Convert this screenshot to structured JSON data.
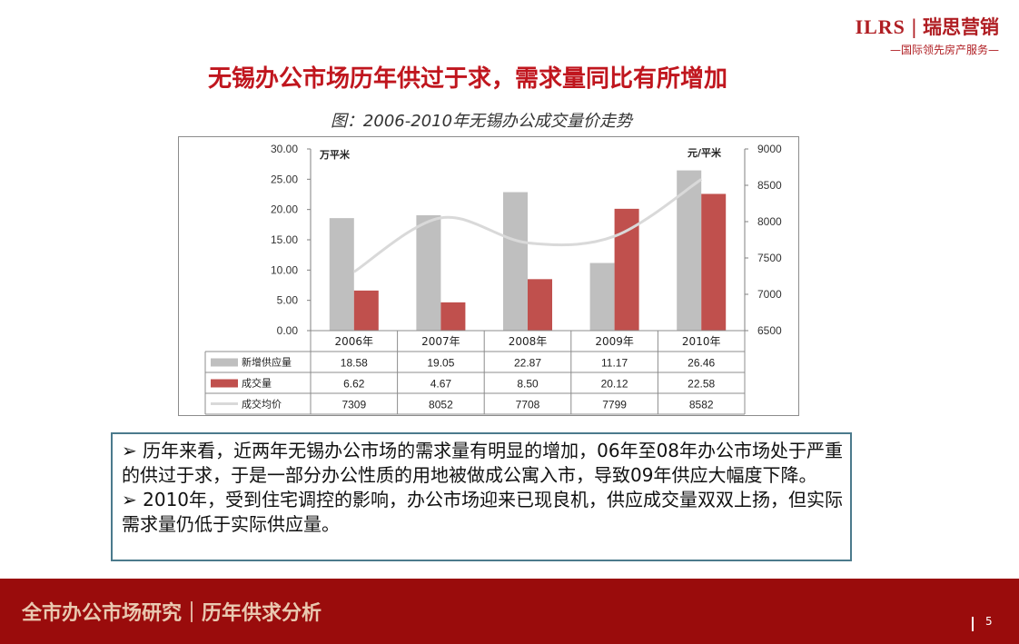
{
  "logo": {
    "en": "ILRS",
    "separator": "|",
    "cn": "瑞思营销",
    "tagline": "—国际领先房产服务—"
  },
  "headline": "无锡办公市场历年供过于求，需求量同比有所增加",
  "caption": "图：2006-2010年无锡办公成交量价走势",
  "chart_data": {
    "type": "bar",
    "categories": [
      "2006年",
      "2007年",
      "2008年",
      "2009年",
      "2010年"
    ],
    "left_axis_unit": "万平米",
    "right_axis_unit": "元/平米",
    "left_ticks": [
      "30.00",
      "25.00",
      "20.00",
      "15.00",
      "10.00",
      "5.00",
      "0.00"
    ],
    "right_ticks": [
      "9000",
      "8500",
      "8000",
      "7500",
      "7000",
      "6500"
    ],
    "ylim_left": [
      0,
      30
    ],
    "ylim_right": [
      6500,
      9000
    ],
    "series": [
      {
        "name": "新增供应量",
        "type": "bar",
        "axis": "left",
        "color": "#bfbfbf",
        "values": [
          18.58,
          19.05,
          22.87,
          11.17,
          26.46
        ],
        "labels": [
          "18.58",
          "19.05",
          "22.87",
          "11.17",
          "26.46"
        ]
      },
      {
        "name": "成交量",
        "type": "bar",
        "axis": "left",
        "color": "#c0504d",
        "values": [
          6.62,
          4.67,
          8.5,
          20.12,
          22.58
        ],
        "labels": [
          "6.62",
          "4.67",
          "8.50",
          "20.12",
          "22.58"
        ]
      },
      {
        "name": "成交均价",
        "type": "line",
        "axis": "right",
        "color": "#d9d9d9",
        "values": [
          7309,
          8052,
          7708,
          7799,
          8582
        ],
        "labels": [
          "7309",
          "8052",
          "7708",
          "7799",
          "8582"
        ]
      }
    ],
    "legend": "table-below",
    "grid": false
  },
  "notes": [
    "➢  历年来看，近两年无锡办公市场的需求量有明显的增加，06年至08年办公市场处于严重的供过于求，于是一部分办公性质的用地被做成公寓入市，导致09年供应大幅度下降。",
    "➢  2010年，受到住宅调控的影响，办公市场迎来已现良机，供应成交量双双上扬，但实际需求量仍低于实际供应量。"
  ],
  "footer": {
    "title": "全市办公市场研究｜历年供求分析",
    "page": "5"
  }
}
